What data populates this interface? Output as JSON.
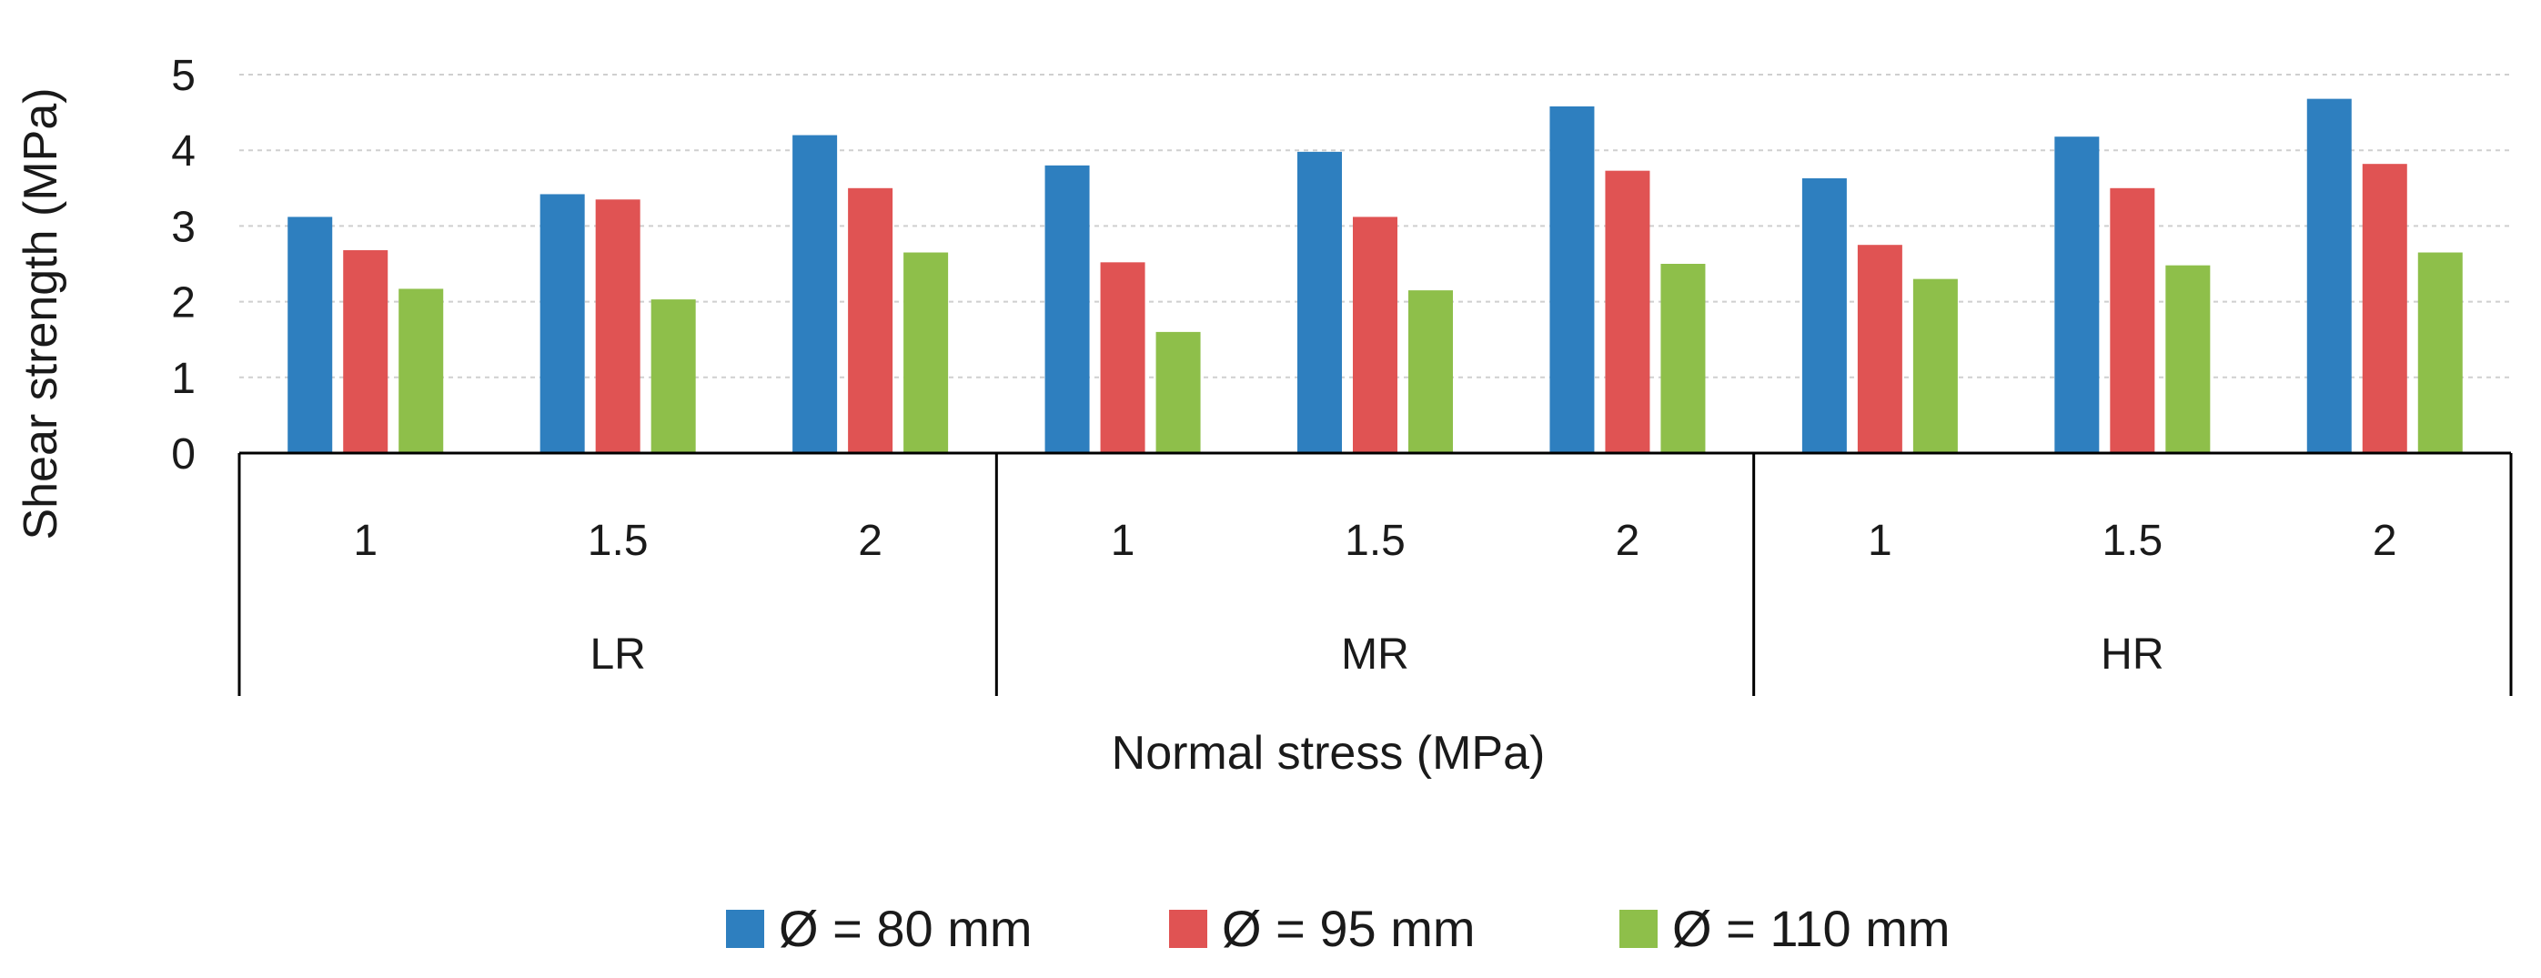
{
  "chart_data": {
    "type": "bar",
    "title": "",
    "xlabel": "Normal stress (MPa)",
    "ylabel": "Shear strength (MPa)",
    "ylim": [
      0,
      5
    ],
    "yticks": [
      "0",
      "1",
      "2",
      "3",
      "4",
      "5"
    ],
    "grid": true,
    "legend_position": "bottom",
    "groups": [
      {
        "label": "LR",
        "categories": [
          "1",
          "1.5",
          "2"
        ]
      },
      {
        "label": "MR",
        "categories": [
          "1",
          "1.5",
          "2"
        ]
      },
      {
        "label": "HR",
        "categories": [
          "1",
          "1.5",
          "2"
        ]
      }
    ],
    "series": [
      {
        "name": "Ø = 80 mm",
        "color": "#2e7fbf",
        "values": [
          3.12,
          3.42,
          4.2,
          3.8,
          3.98,
          4.58,
          3.63,
          4.18,
          4.68
        ]
      },
      {
        "name": "Ø = 95 mm",
        "color": "#e05353",
        "values": [
          2.68,
          3.35,
          3.5,
          2.52,
          3.12,
          3.73,
          2.75,
          3.5,
          3.82
        ]
      },
      {
        "name": "Ø = 110 mm",
        "color": "#8ebf4a",
        "values": [
          2.17,
          2.03,
          2.65,
          1.6,
          2.15,
          2.5,
          2.3,
          2.48,
          2.65
        ]
      }
    ]
  }
}
